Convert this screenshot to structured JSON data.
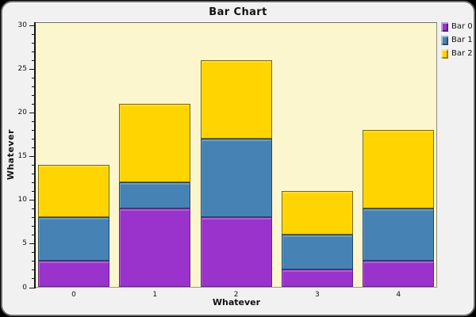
{
  "title": "Bar Chart",
  "axes": {
    "x_label": "Whatever",
    "y_label": "Whatever",
    "x_categories": [
      "0",
      "1",
      "2",
      "3",
      "4"
    ],
    "y_tick_labels": [
      "0",
      "5",
      "10",
      "15",
      "20",
      "25",
      "30"
    ]
  },
  "legend": {
    "position": "top-right",
    "items": [
      {
        "label": "Bar 0",
        "color": "#9933CC"
      },
      {
        "label": "Bar 1",
        "color": "#4682B4"
      },
      {
        "label": "Bar 2",
        "color": "#FFD400"
      }
    ]
  },
  "colors": {
    "plot_background": "#FCF6CF",
    "panel_background": "#F1F1F1",
    "outer_background": "#000000",
    "axis_line": "#141414"
  },
  "chart_data": {
    "type": "bar",
    "stacked": true,
    "title": "Bar Chart",
    "xlabel": "Whatever",
    "ylabel": "Whatever",
    "categories": [
      "0",
      "1",
      "2",
      "3",
      "4"
    ],
    "series": [
      {
        "name": "Bar 0",
        "color": "#9933CC",
        "border_color": "#66248A",
        "values": [
          3,
          9,
          8,
          2,
          3
        ]
      },
      {
        "name": "Bar 1",
        "color": "#4682B4",
        "border_color": "#24466B",
        "values": [
          5,
          3,
          9,
          4,
          6
        ]
      },
      {
        "name": "Bar 2",
        "color": "#FFD400",
        "border_color": "#7A6A00",
        "values": [
          6,
          9,
          9,
          5,
          9
        ]
      }
    ],
    "stack_totals": [
      14,
      21,
      26,
      11,
      18
    ],
    "ylim": [
      0,
      30
    ],
    "y_major_step": 5,
    "y_minor_step": 1,
    "grid": false,
    "legend_position": "top-right"
  }
}
